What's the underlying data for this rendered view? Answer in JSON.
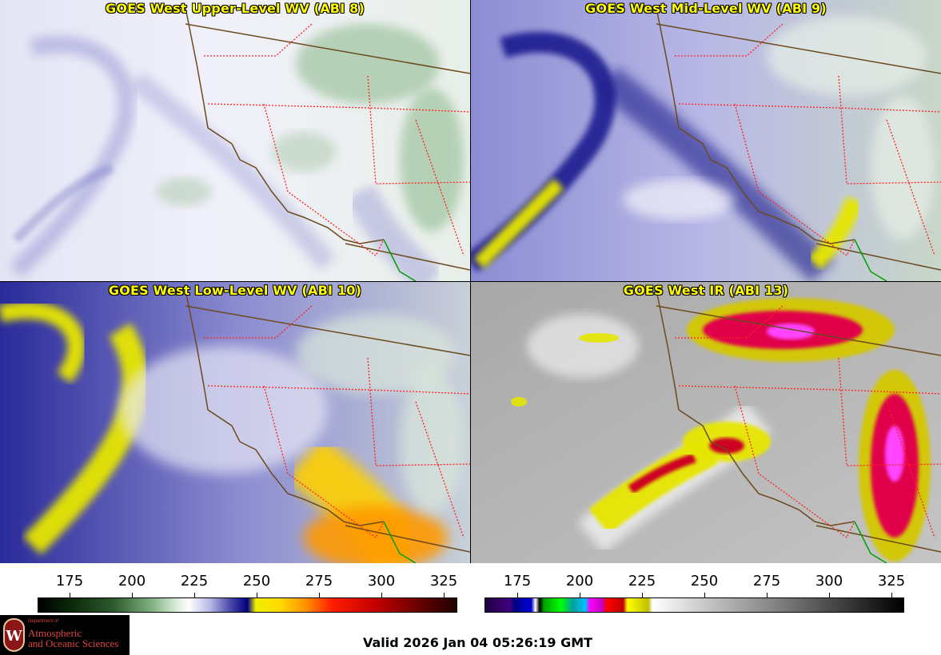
{
  "panels": {
    "upper_left": {
      "title": "GOES West Upper-Level WV (ABI 8)"
    },
    "upper_right": {
      "title": "GOES West Mid-Level WV (ABI 9)"
    },
    "lower_left": {
      "title": "GOES West Low-Level WV (ABI 10)"
    },
    "lower_right": {
      "title": "GOES West IR (ABI 13)"
    }
  },
  "colorbars": {
    "left": {
      "ticks": [
        "175",
        "200",
        "225",
        "250",
        "275",
        "300",
        "325"
      ]
    },
    "right": {
      "ticks": [
        "175",
        "200",
        "225",
        "250",
        "275",
        "300",
        "325"
      ]
    }
  },
  "logo": {
    "seal_letter": "W",
    "department": "Department of",
    "unit_line1": "Atmospheric",
    "unit_line2": "and Oceanic Sciences"
  },
  "valid_time": "Valid 2026 Jan 04 05:26:19 GMT",
  "colors": {
    "title_text": "#ffff00",
    "coast": "#6b4a1e",
    "state_border": "#ff2020",
    "mexico_border": "#00a000"
  }
}
